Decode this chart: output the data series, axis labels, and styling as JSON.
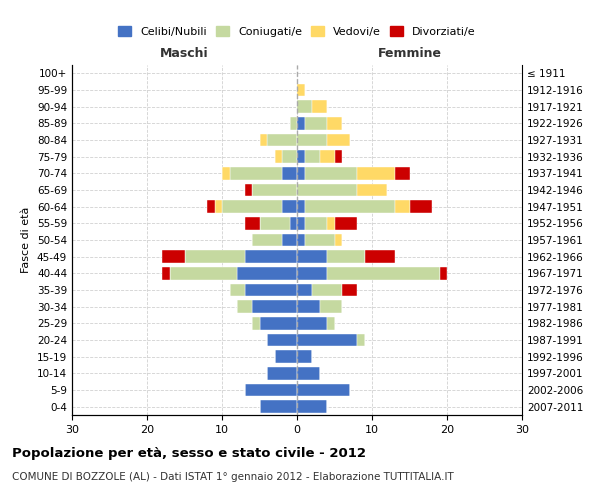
{
  "age_groups": [
    "0-4",
    "5-9",
    "10-14",
    "15-19",
    "20-24",
    "25-29",
    "30-34",
    "35-39",
    "40-44",
    "45-49",
    "50-54",
    "55-59",
    "60-64",
    "65-69",
    "70-74",
    "75-79",
    "80-84",
    "85-89",
    "90-94",
    "95-99",
    "100+"
  ],
  "birth_years": [
    "2007-2011",
    "2002-2006",
    "1997-2001",
    "1992-1996",
    "1987-1991",
    "1982-1986",
    "1977-1981",
    "1972-1976",
    "1967-1971",
    "1962-1966",
    "1957-1961",
    "1952-1956",
    "1947-1951",
    "1942-1946",
    "1937-1941",
    "1932-1936",
    "1927-1931",
    "1922-1926",
    "1917-1921",
    "1912-1916",
    "≤ 1911"
  ],
  "male": {
    "celibi": [
      5,
      7,
      4,
      3,
      4,
      5,
      6,
      7,
      8,
      7,
      2,
      1,
      2,
      0,
      2,
      0,
      0,
      0,
      0,
      0,
      0
    ],
    "coniugati": [
      0,
      0,
      0,
      0,
      0,
      1,
      2,
      2,
      9,
      8,
      4,
      4,
      8,
      6,
      7,
      2,
      4,
      1,
      0,
      0,
      0
    ],
    "vedovi": [
      0,
      0,
      0,
      0,
      0,
      0,
      0,
      0,
      0,
      0,
      0,
      0,
      1,
      0,
      1,
      1,
      1,
      0,
      0,
      0,
      0
    ],
    "divorziati": [
      0,
      0,
      0,
      0,
      0,
      0,
      0,
      0,
      1,
      3,
      0,
      2,
      1,
      1,
      0,
      0,
      0,
      0,
      0,
      0,
      0
    ]
  },
  "female": {
    "nubili": [
      4,
      7,
      3,
      2,
      8,
      4,
      3,
      2,
      4,
      4,
      1,
      1,
      1,
      0,
      1,
      1,
      0,
      1,
      0,
      0,
      0
    ],
    "coniugate": [
      0,
      0,
      0,
      0,
      1,
      1,
      3,
      4,
      15,
      5,
      4,
      3,
      12,
      8,
      7,
      2,
      4,
      3,
      2,
      0,
      0
    ],
    "vedove": [
      0,
      0,
      0,
      0,
      0,
      0,
      0,
      0,
      0,
      0,
      1,
      1,
      2,
      4,
      5,
      2,
      3,
      2,
      2,
      1,
      0
    ],
    "divorziate": [
      0,
      0,
      0,
      0,
      0,
      0,
      0,
      2,
      1,
      4,
      0,
      3,
      3,
      0,
      2,
      1,
      0,
      0,
      0,
      0,
      0
    ]
  },
  "colors": {
    "celibi_nubili": "#4472c4",
    "coniugati": "#c5d9a0",
    "vedovi": "#ffd966",
    "divorziati": "#cc0000"
  },
  "title": "Popolazione per età, sesso e stato civile - 2012",
  "subtitle": "COMUNE DI BOZZOLE (AL) - Dati ISTAT 1° gennaio 2012 - Elaborazione TUTTITALIA.IT",
  "xlabel_left": "Maschi",
  "xlabel_right": "Femmine",
  "ylabel_left": "Fasce di età",
  "xlim": 30,
  "legend_labels": [
    "Celibi/Nubili",
    "Coniugati/e",
    "Vedovi/e",
    "Divorziati/e"
  ],
  "background_color": "#ffffff",
  "grid_color": "#cccccc"
}
